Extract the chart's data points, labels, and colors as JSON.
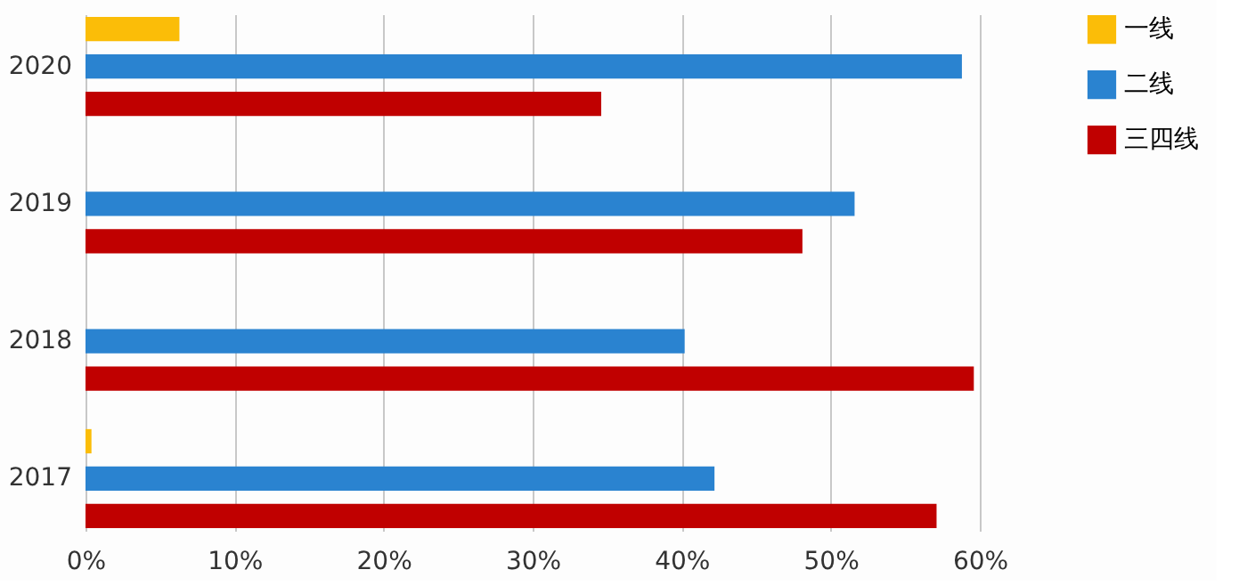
{
  "chart_data": {
    "type": "bar",
    "orientation": "horizontal",
    "categories": [
      "2020",
      "2019",
      "2018",
      "2017"
    ],
    "series": [
      {
        "name": "一线",
        "color": "#fbbd08",
        "values": [
          6.3,
          null,
          null,
          0.4
        ]
      },
      {
        "name": "二线",
        "color": "#2a83d0",
        "values": [
          58.8,
          51.6,
          40.2,
          42.2
        ]
      },
      {
        "name": "三四线",
        "color": "#c00000",
        "values": [
          34.6,
          48.1,
          59.6,
          57.1
        ]
      }
    ],
    "xlim": [
      0,
      60
    ],
    "xticks": [
      {
        "value": 0,
        "label": "0%"
      },
      {
        "value": 10,
        "label": "10%"
      },
      {
        "value": 20,
        "label": "20%"
      },
      {
        "value": 30,
        "label": "30%"
      },
      {
        "value": 40,
        "label": "40%"
      },
      {
        "value": 50,
        "label": "50%"
      },
      {
        "value": 60,
        "label": "60%"
      }
    ],
    "grid": "x",
    "legend": "right"
  }
}
